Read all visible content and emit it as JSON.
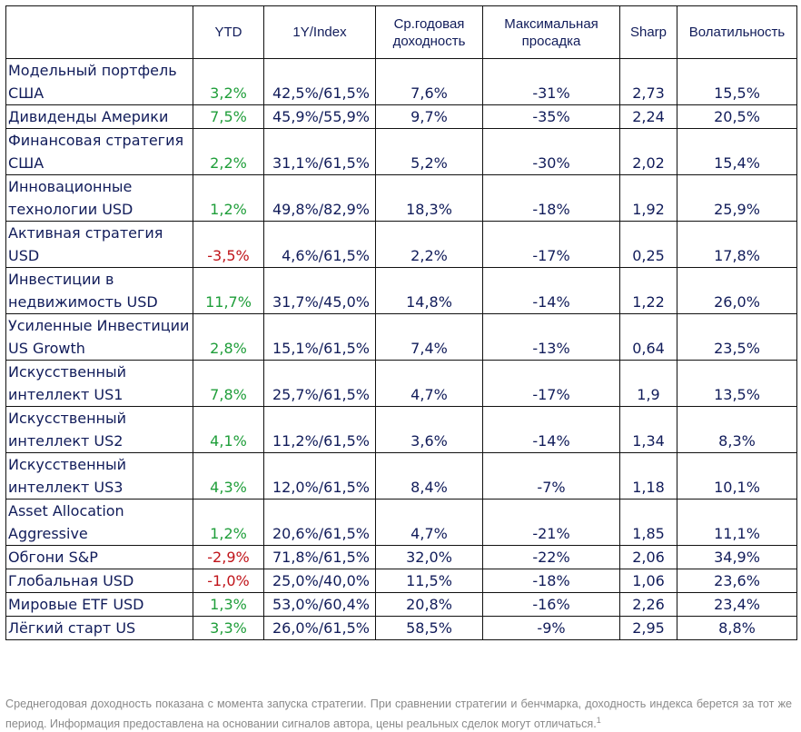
{
  "table": {
    "headers": {
      "name": "",
      "ytd": "YTD",
      "index": "1Y/Index",
      "avg_line1": "Ср.годовая",
      "avg_line2": "доходность",
      "dd_line1": "Максимальная",
      "dd_line2": "просадка",
      "sharp": "Sharp",
      "vol": "Волатильность"
    },
    "rows": [
      {
        "name": "Модельный портфель США",
        "ytd": "3,2%",
        "ytd_sign": "pos",
        "index": "42,5%/61,5%",
        "avg": "7,6%",
        "dd": "-31%",
        "sharp": "2,73",
        "vol": "15,5%"
      },
      {
        "name": "Дивиденды Америки",
        "ytd": "7,5%",
        "ytd_sign": "pos",
        "index": "45,9%/55,9%",
        "avg": "9,7%",
        "dd": "-35%",
        "sharp": "2,24",
        "vol": "20,5%"
      },
      {
        "name": "Финансовая стратегия США",
        "ytd": "2,2%",
        "ytd_sign": "pos",
        "index": "31,1%/61,5%",
        "avg": "5,2%",
        "dd": "-30%",
        "sharp": "2,02",
        "vol": "15,4%"
      },
      {
        "name": "Инновационные технологии USD",
        "ytd": "1,2%",
        "ytd_sign": "pos",
        "index": "49,8%/82,9%",
        "avg": "18,3%",
        "dd": "-18%",
        "sharp": "1,92",
        "vol": "25,9%"
      },
      {
        "name": "Активная стратегия USD",
        "ytd": "-3,5%",
        "ytd_sign": "neg",
        "index": "4,6%/61,5%",
        "avg": "2,2%",
        "dd": "-17%",
        "sharp": "0,25",
        "vol": "17,8%"
      },
      {
        "name": "Инвестиции в недвижимость USD",
        "ytd": "11,7%",
        "ytd_sign": "pos",
        "index": "31,7%/45,0%",
        "avg": "14,8%",
        "dd": "-14%",
        "sharp": "1,22",
        "vol": "26,0%"
      },
      {
        "name": "Усиленные Инвестиции US Growth",
        "ytd": "2,8%",
        "ytd_sign": "pos",
        "index": "15,1%/61,5%",
        "avg": "7,4%",
        "dd": "-13%",
        "sharp": "0,64",
        "vol": "23,5%"
      },
      {
        "name": "Искусственный интеллект US1",
        "ytd": "7,8%",
        "ytd_sign": "pos",
        "index": "25,7%/61,5%",
        "avg": "4,7%",
        "dd": "-17%",
        "sharp": "1,9",
        "vol": "13,5%"
      },
      {
        "name": "Искусственный интеллект US2",
        "ytd": "4,1%",
        "ytd_sign": "pos",
        "index": "11,2%/61,5%",
        "avg": "3,6%",
        "dd": "-14%",
        "sharp": "1,34",
        "vol": "8,3%"
      },
      {
        "name": "Искусственный интеллект US3",
        "ytd": "4,3%",
        "ytd_sign": "pos",
        "index": "12,0%/61,5%",
        "avg": "8,4%",
        "dd": "-7%",
        "sharp": "1,18",
        "vol": "10,1%"
      },
      {
        "name": "Asset Allocation Aggressive",
        "ytd": "1,2%",
        "ytd_sign": "pos",
        "index": "20,6%/61,5%",
        "avg": "4,7%",
        "dd": "-21%",
        "sharp": "1,85",
        "vol": "11,1%"
      },
      {
        "name": "Обгони S&P",
        "ytd": "-2,9%",
        "ytd_sign": "neg",
        "index": "71,8%/61,5%",
        "avg": "32,0%",
        "dd": "-22%",
        "sharp": "2,06",
        "vol": "34,9%"
      },
      {
        "name": "Глобальная USD",
        "ytd": "-1,0%",
        "ytd_sign": "neg",
        "index": "25,0%/40,0%",
        "avg": "11,5%",
        "dd": "-18%",
        "sharp": "1,06",
        "vol": "23,6%"
      },
      {
        "name": "Мировые ETF USD",
        "ytd": "1,3%",
        "ytd_sign": "pos",
        "index": "53,0%/60,4%",
        "avg": "20,8%",
        "dd": "-16%",
        "sharp": "2,26",
        "vol": "23,4%"
      },
      {
        "name": "Лёгкий старт US",
        "ytd": "3,3%",
        "ytd_sign": "pos",
        "index": "26,0%/61,5%",
        "avg": "58,5%",
        "dd": "-9%",
        "sharp": "2,95",
        "vol": "8,8%"
      }
    ]
  },
  "footnote": {
    "text": "Среднегодовая доходность показана с момента запуска стратегии. При сравнении стратегии и бенчмарка, доходность индекса берется за тот же период. Информация предоставлена на основании сигналов автора, цены реальных сделок могут отличаться.",
    "marker": "1"
  },
  "colors": {
    "text": "#111c5a",
    "positive": "#1f9e3a",
    "negative": "#c0141a",
    "footnote": "#8a8a8a",
    "border": "#111111"
  }
}
